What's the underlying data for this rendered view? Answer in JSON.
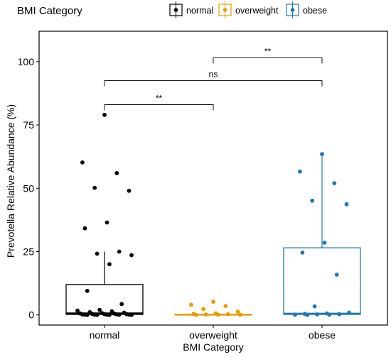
{
  "legend": {
    "title": "BMI Category",
    "entries": [
      {
        "label": "normal",
        "color": "#000000"
      },
      {
        "label": "overweight",
        "color": "#E69F00"
      },
      {
        "label": "obese",
        "color": "#1F78B4"
      }
    ],
    "position": "top"
  },
  "chart_data": {
    "type": "box",
    "xlabel": "BMI Category",
    "ylabel": "Prevotella Relative Abundance (%)",
    "categories": [
      "normal",
      "overweight",
      "obese"
    ],
    "colors": [
      "#000000",
      "#E69F00",
      "#1F78B4"
    ],
    "ylim": [
      -4,
      112
    ],
    "yticks": [
      0,
      25,
      50,
      75,
      100
    ],
    "yticklabels": [
      "0",
      "25",
      "50",
      "75",
      "100"
    ],
    "grid": false,
    "boxes": [
      {
        "category": "normal",
        "whisker_low": 0,
        "q1": 0.2,
        "median": 0.6,
        "q3": 12,
        "whisker_high": 25
      },
      {
        "category": "overweight",
        "whisker_low": 0,
        "q1": 0,
        "median": 0.1,
        "q3": 0.3,
        "whisker_high": 0.6
      },
      {
        "category": "obese",
        "whisker_low": 0,
        "q1": 0.2,
        "median": 0.5,
        "q3": 26.5,
        "whisker_high": 63.5
      }
    ],
    "points": [
      {
        "category": "normal",
        "values": [
          79,
          60.2,
          56,
          50.2,
          49,
          36.5,
          34.2,
          25,
          24.2,
          23.6,
          20,
          9.5,
          4.3,
          2,
          1.7,
          1.4,
          1.1,
          0.9,
          0.7,
          0.6,
          0.5,
          0.4,
          0.3,
          0.3,
          0.2,
          0.2,
          0.1,
          0.1,
          0.1,
          0.1,
          0.1,
          0,
          0,
          0,
          0
        ]
      },
      {
        "category": "overweight",
        "values": [
          5.2,
          4,
          3.5,
          2.3,
          1.3,
          0.6,
          0.4,
          0.3,
          0.2,
          0.1,
          0.1,
          0
        ]
      },
      {
        "category": "obese",
        "values": [
          63.5,
          56.6,
          52,
          45.1,
          43.7,
          28.5,
          24.6,
          15.9,
          3.4,
          0.9,
          0.6,
          0.4,
          0.3,
          0.2,
          0.1,
          0.1,
          0
        ]
      }
    ],
    "comparisons": [
      {
        "from": "normal",
        "to": "overweight",
        "y": 83,
        "label": "**"
      },
      {
        "from": "normal",
        "to": "obese",
        "y": 92.5,
        "label": "ns"
      },
      {
        "from": "overweight",
        "to": "obese",
        "y": 101.5,
        "label": "**"
      }
    ]
  }
}
